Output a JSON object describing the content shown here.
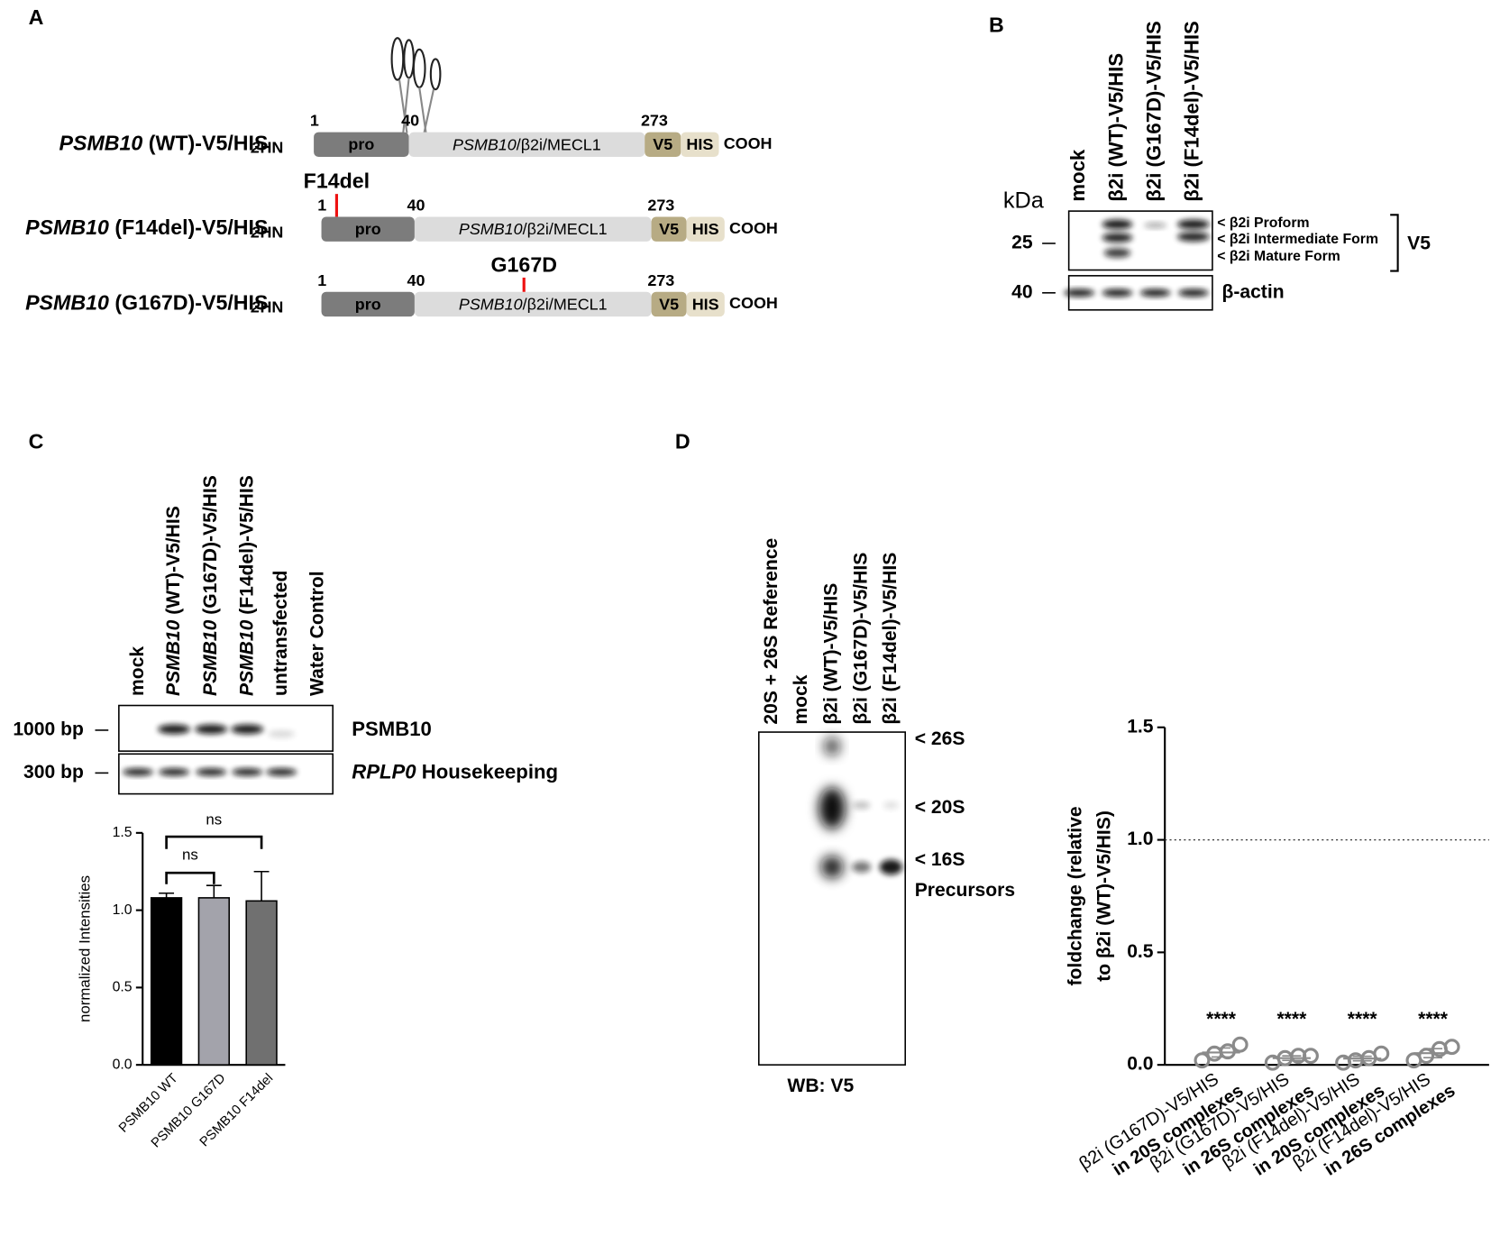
{
  "panel_a": {
    "label": "A",
    "constructs": [
      {
        "name": [
          "PSMB10",
          " (WT)-V5/HIS"
        ],
        "n_term": [
          "2",
          "HN"
        ],
        "positions": [
          1,
          40,
          273
        ],
        "segments": [
          "pro",
          [
            "PSMB10",
            "/β2i/MECL1"
          ],
          "V5",
          "HIS"
        ],
        "c_term": "COOH"
      },
      {
        "name": [
          "PSMB10",
          " (F14del)-V5/HIS"
        ],
        "n_term": [
          "2",
          "HN"
        ],
        "positions": [
          1,
          40,
          273
        ],
        "segments": [
          "pro",
          [
            "PSMB10",
            "/β2i/MECL1"
          ],
          "V5",
          "HIS"
        ],
        "c_term": "COOH",
        "mutation": "F14del"
      },
      {
        "name": [
          "PSMB10",
          " (G167D)-V5/HIS"
        ],
        "n_term": [
          "2",
          "HN"
        ],
        "positions": [
          1,
          40,
          273
        ],
        "segments": [
          "pro",
          [
            "PSMB10",
            "/β2i/MECL1"
          ],
          "V5",
          "HIS"
        ],
        "c_term": "COOH",
        "mutation": "G167D"
      }
    ]
  },
  "panel_b": {
    "label": "B",
    "unit": "kDa",
    "lanes": [
      "mock",
      "β2i (WT)-V5/HIS",
      "β2i (G167D)-V5/HIS",
      "β2i (F14del)-V5/HIS"
    ],
    "markers": [
      25,
      40
    ],
    "bands": [
      "< β2i Proform",
      "< β2i Intermediate Form",
      "< β2i Mature Form"
    ],
    "antibodies": [
      "V5",
      "β-actin"
    ]
  },
  "panel_c": {
    "label": "C",
    "lanes": [
      [
        "mock"
      ],
      [
        "PSMB10",
        " (WT)-V5/HIS"
      ],
      [
        "PSMB10",
        " (G167D)-V5/HIS"
      ],
      [
        "PSMB10",
        " (F14del)-V5/HIS"
      ],
      [
        "untransfected"
      ],
      [
        "Water Control"
      ]
    ],
    "markers": [
      "1000 bp",
      "300 bp"
    ],
    "targets": [
      [
        "PSMB10"
      ],
      [
        "RPLP0",
        " Housekeeping"
      ]
    ]
  },
  "panel_d": {
    "label": "D",
    "lanes": [
      "20S + 26S Reference",
      "mock",
      "β2i (WT)-V5/HIS",
      "β2i (G167D)-V5/HIS",
      "β2i (F14del)-V5/HIS"
    ],
    "markers": [
      "< 26S",
      "< 20S",
      "< 16S",
      "Precursors"
    ],
    "footer": "WB: V5"
  },
  "chart_data": [
    {
      "type": "bar",
      "y_label": "normalized Intensities",
      "categories": [
        "PSMB10 WT",
        "PSMB10 G167D",
        "PSMB10 F14del"
      ],
      "values": [
        1.08,
        1.08,
        1.06
      ],
      "errors": [
        0.03,
        0.08,
        0.19
      ],
      "colors": [
        "#000000",
        "#a3a3ab",
        "#707070"
      ],
      "ylim": [
        0,
        1.5
      ],
      "yticks": [
        {
          "value": 0,
          "label": "0.0"
        },
        0.5,
        {
          "value": 1,
          "label": "1.0"
        },
        1.5
      ],
      "annotations": [
        "ns",
        "ns"
      ]
    },
    {
      "type": "dot",
      "y_label": [
        "foldchange (relative",
        "to β2i (WT)-V5/HIS)"
      ],
      "categories": [
        [
          "β2i (G167D)-V5/HIS",
          "in 20S complexes"
        ],
        [
          "β2i (G167D)-V5/HIS",
          "in 26S complexes"
        ],
        [
          "β2i (F14del)-V5/HIS",
          "in 20S complexes"
        ],
        [
          "β2i (F14del)-V5/HIS",
          "in 26S complexes"
        ]
      ],
      "values": [
        [
          0.02,
          0.05,
          0.06,
          0.09
        ],
        [
          0.01,
          0.03,
          0.04,
          0.04
        ],
        [
          0.01,
          0.02,
          0.03,
          0.05
        ],
        [
          0.02,
          0.04,
          0.07,
          0.08
        ]
      ],
      "means": [
        0.055,
        0.03,
        0.028,
        0.052
      ],
      "errors": [
        0.02,
        0.01,
        0.01,
        0.02
      ],
      "color": "#8a8a8a",
      "reference_line": 1.0,
      "ylim": [
        0,
        1.5
      ],
      "yticks": [
        {
          "value": 0,
          "label": "0.0"
        },
        0.5,
        {
          "value": 1,
          "label": "1.0"
        },
        1.5
      ],
      "annotations": [
        "****",
        "****",
        "****",
        "****"
      ]
    }
  ]
}
